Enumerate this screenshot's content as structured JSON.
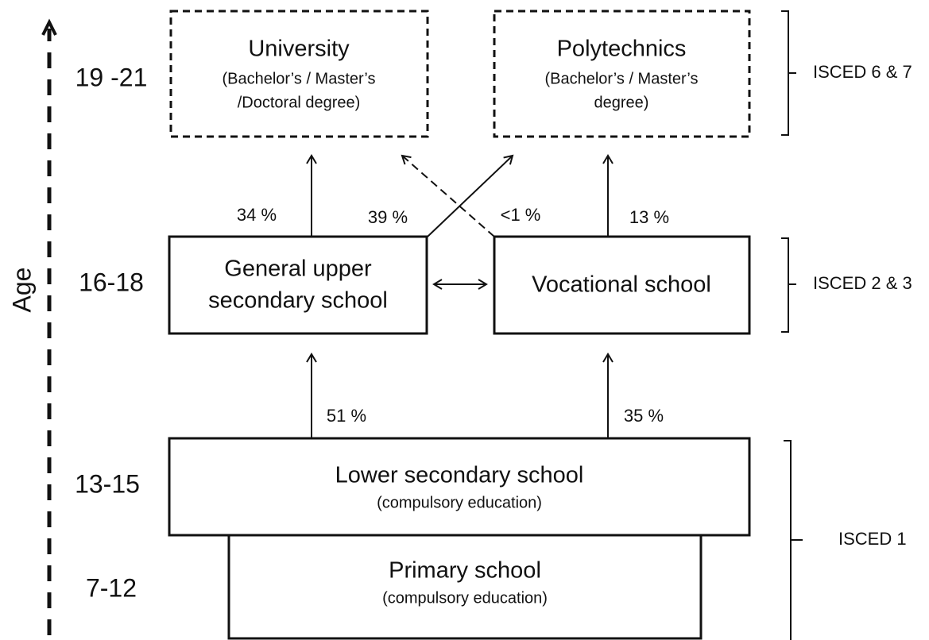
{
  "axis_label": "Age",
  "ages": [
    "19 -21",
    "16-18",
    "13-15",
    "7-12"
  ],
  "boxes": {
    "university": {
      "title": "University",
      "lines": [
        "(Bachelor’s / Master’s",
        "/Doctoral degree)"
      ]
    },
    "polytechnics": {
      "title": "Polytechnics",
      "lines": [
        "(Bachelor’s / Master’s",
        "degree)"
      ]
    },
    "general_upper": {
      "title": "General upper",
      "lines": [
        "secondary school"
      ]
    },
    "vocational": {
      "title": "Vocational school"
    },
    "lower_secondary": {
      "title": "Lower secondary school",
      "lines": [
        "(compulsory education)"
      ]
    },
    "primary": {
      "title": "Primary school",
      "lines": [
        "(compulsory education)"
      ]
    }
  },
  "percentages": [
    "34 %",
    "39 %",
    "<1 %",
    "13 %",
    "51 %",
    "35 %"
  ],
  "levels": [
    "ISCED 6 & 7",
    "ISCED 2 & 3",
    "ISCED 1"
  ]
}
